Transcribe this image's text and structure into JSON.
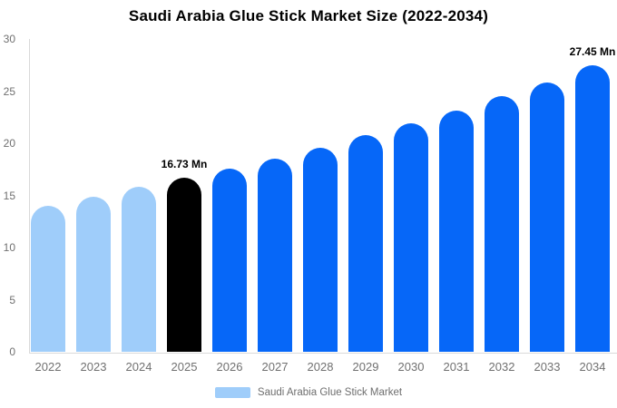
{
  "chart_data": {
    "type": "bar",
    "title": "Saudi Arabia Glue Stick Market Size (2022-2034)",
    "unit": "Mn",
    "categories": [
      "2022",
      "2023",
      "2024",
      "2025",
      "2026",
      "2027",
      "2028",
      "2029",
      "2030",
      "2031",
      "2032",
      "2033",
      "2034"
    ],
    "values": [
      14.0,
      14.9,
      15.8,
      16.73,
      17.6,
      18.5,
      19.6,
      20.8,
      21.9,
      23.1,
      24.5,
      25.8,
      27.45
    ],
    "segments": [
      "historical",
      "historical",
      "historical",
      "base",
      "forecast",
      "forecast",
      "forecast",
      "forecast",
      "forecast",
      "forecast",
      "forecast",
      "forecast",
      "forecast"
    ],
    "colors": {
      "historical": "#9FCDFA",
      "base": "#000000",
      "forecast": "#0667F8"
    },
    "point_labels": {
      "2025": "16.73 Mn",
      "2034": "27.45 Mn"
    },
    "xlabel": "",
    "ylabel": "",
    "ylim": [
      0,
      30
    ],
    "yticks": [
      0,
      5,
      10,
      15,
      20,
      25,
      30
    ],
    "grid": false,
    "axis_color": "#D9D9D9",
    "tick_color": "#707070",
    "legend_position": "bottom",
    "legend": [
      {
        "label": "Saudi Arabia Glue Stick Market",
        "color": "#9FCDFA"
      }
    ]
  }
}
